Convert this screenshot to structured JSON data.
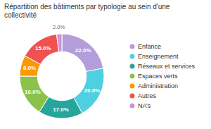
{
  "chart_data": {
    "type": "donut",
    "title": "Répartition des bâtiments par typologie au sein d'une\ncollectivité",
    "categories": [
      "Enfance",
      "Enseignement",
      "Réseaux et services",
      "Espaces verts",
      "Administration",
      "Autres",
      "NA’s"
    ],
    "values": [
      22.0,
      20.0,
      17.0,
      16.0,
      8.0,
      15.0,
      2.0
    ],
    "value_labels": [
      "22.0%",
      "20.0%",
      "17.0%",
      "16.0%",
      "8.0%",
      "15.0%",
      "2.0%"
    ],
    "colors": [
      "#b39ddb",
      "#4dd0e1",
      "#26a69a",
      "#8bc34a",
      "#ff9800",
      "#ef5350",
      "#ce93d8"
    ],
    "data_labels": true,
    "legend": "right"
  }
}
